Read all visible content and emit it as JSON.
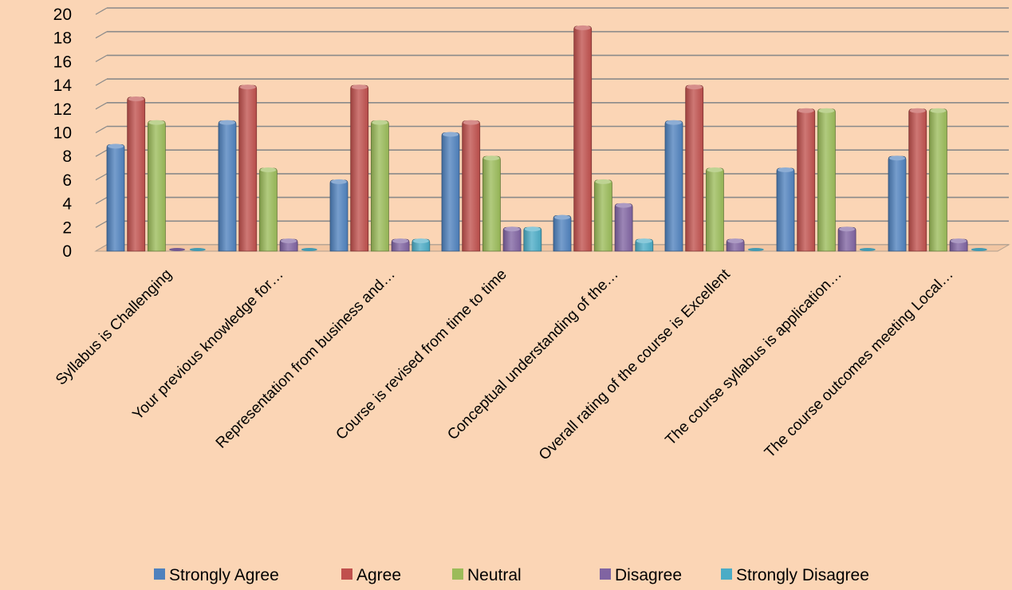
{
  "chart_data": {
    "type": "bar",
    "categories": [
      "Syllabus is Challenging",
      "Your previous knowledge  for…",
      "Representation from business and…",
      "Course is revised from time to time",
      "Conceptual  understanding of the…",
      "Overall rating of the course is Excellent",
      "The course syllabus is application…",
      "The course outcomes meeting Local…"
    ],
    "series": [
      {
        "name": "Strongly Agree",
        "color": "#4f81bd",
        "values": [
          9,
          11,
          6,
          10,
          3,
          11,
          7,
          8
        ]
      },
      {
        "name": "Agree",
        "color": "#c0504d",
        "values": [
          13,
          14,
          14,
          11,
          19,
          14,
          12,
          12
        ]
      },
      {
        "name": "Neutral",
        "color": "#9bbb59",
        "values": [
          11,
          7,
          11,
          8,
          6,
          7,
          12,
          12
        ]
      },
      {
        "name": "Disagree",
        "color": "#8064a2",
        "values": [
          0,
          1,
          1,
          2,
          4,
          1,
          2,
          1
        ]
      },
      {
        "name": "Strongly Disagree",
        "color": "#4bacc6",
        "values": [
          0,
          0,
          1,
          2,
          1,
          0,
          0,
          0
        ]
      }
    ],
    "yticks": [
      "0",
      "2",
      "4",
      "6",
      "8",
      "10",
      "12",
      "14",
      "16",
      "18",
      "20"
    ],
    "ylim": [
      0,
      20
    ],
    "grid": true,
    "legend_position": "bottom",
    "title": "",
    "xlabel": "",
    "ylabel": ""
  }
}
